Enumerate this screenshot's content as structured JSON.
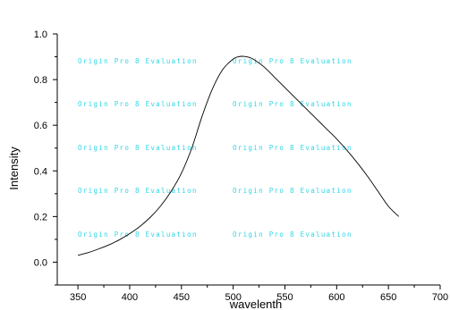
{
  "chart_data": {
    "type": "line",
    "xlabel": "wavelenth",
    "ylabel": "Intensity",
    "xlim": [
      330,
      700
    ],
    "ylim": [
      -0.1,
      1.0
    ],
    "x_ticks": [
      "350",
      "400",
      "450",
      "500",
      "550",
      "600",
      "650",
      "700"
    ],
    "y_ticks": [
      "0.0",
      "0.2",
      "0.4",
      "0.6",
      "0.8",
      "1.0"
    ],
    "grid": false,
    "legend": "none",
    "line_color": "#000000",
    "watermark": "Origin Pro 8 Evaluation",
    "watermark_color": "#2fd6e6",
    "series": [
      {
        "x": [
          350,
          360,
          370,
          380,
          390,
          400,
          410,
          420,
          430,
          440,
          450,
          460,
          470,
          480,
          490,
          500,
          505,
          510,
          515,
          520,
          530,
          540,
          550,
          560,
          570,
          580,
          590,
          600,
          610,
          620,
          630,
          640,
          650,
          660
        ],
        "y": [
          0.03,
          0.042,
          0.058,
          0.076,
          0.098,
          0.125,
          0.157,
          0.197,
          0.247,
          0.31,
          0.39,
          0.5,
          0.64,
          0.76,
          0.845,
          0.89,
          0.9,
          0.902,
          0.898,
          0.888,
          0.855,
          0.81,
          0.765,
          0.72,
          0.675,
          0.63,
          0.585,
          0.54,
          0.49,
          0.435,
          0.375,
          0.31,
          0.245,
          0.2
        ]
      }
    ]
  }
}
